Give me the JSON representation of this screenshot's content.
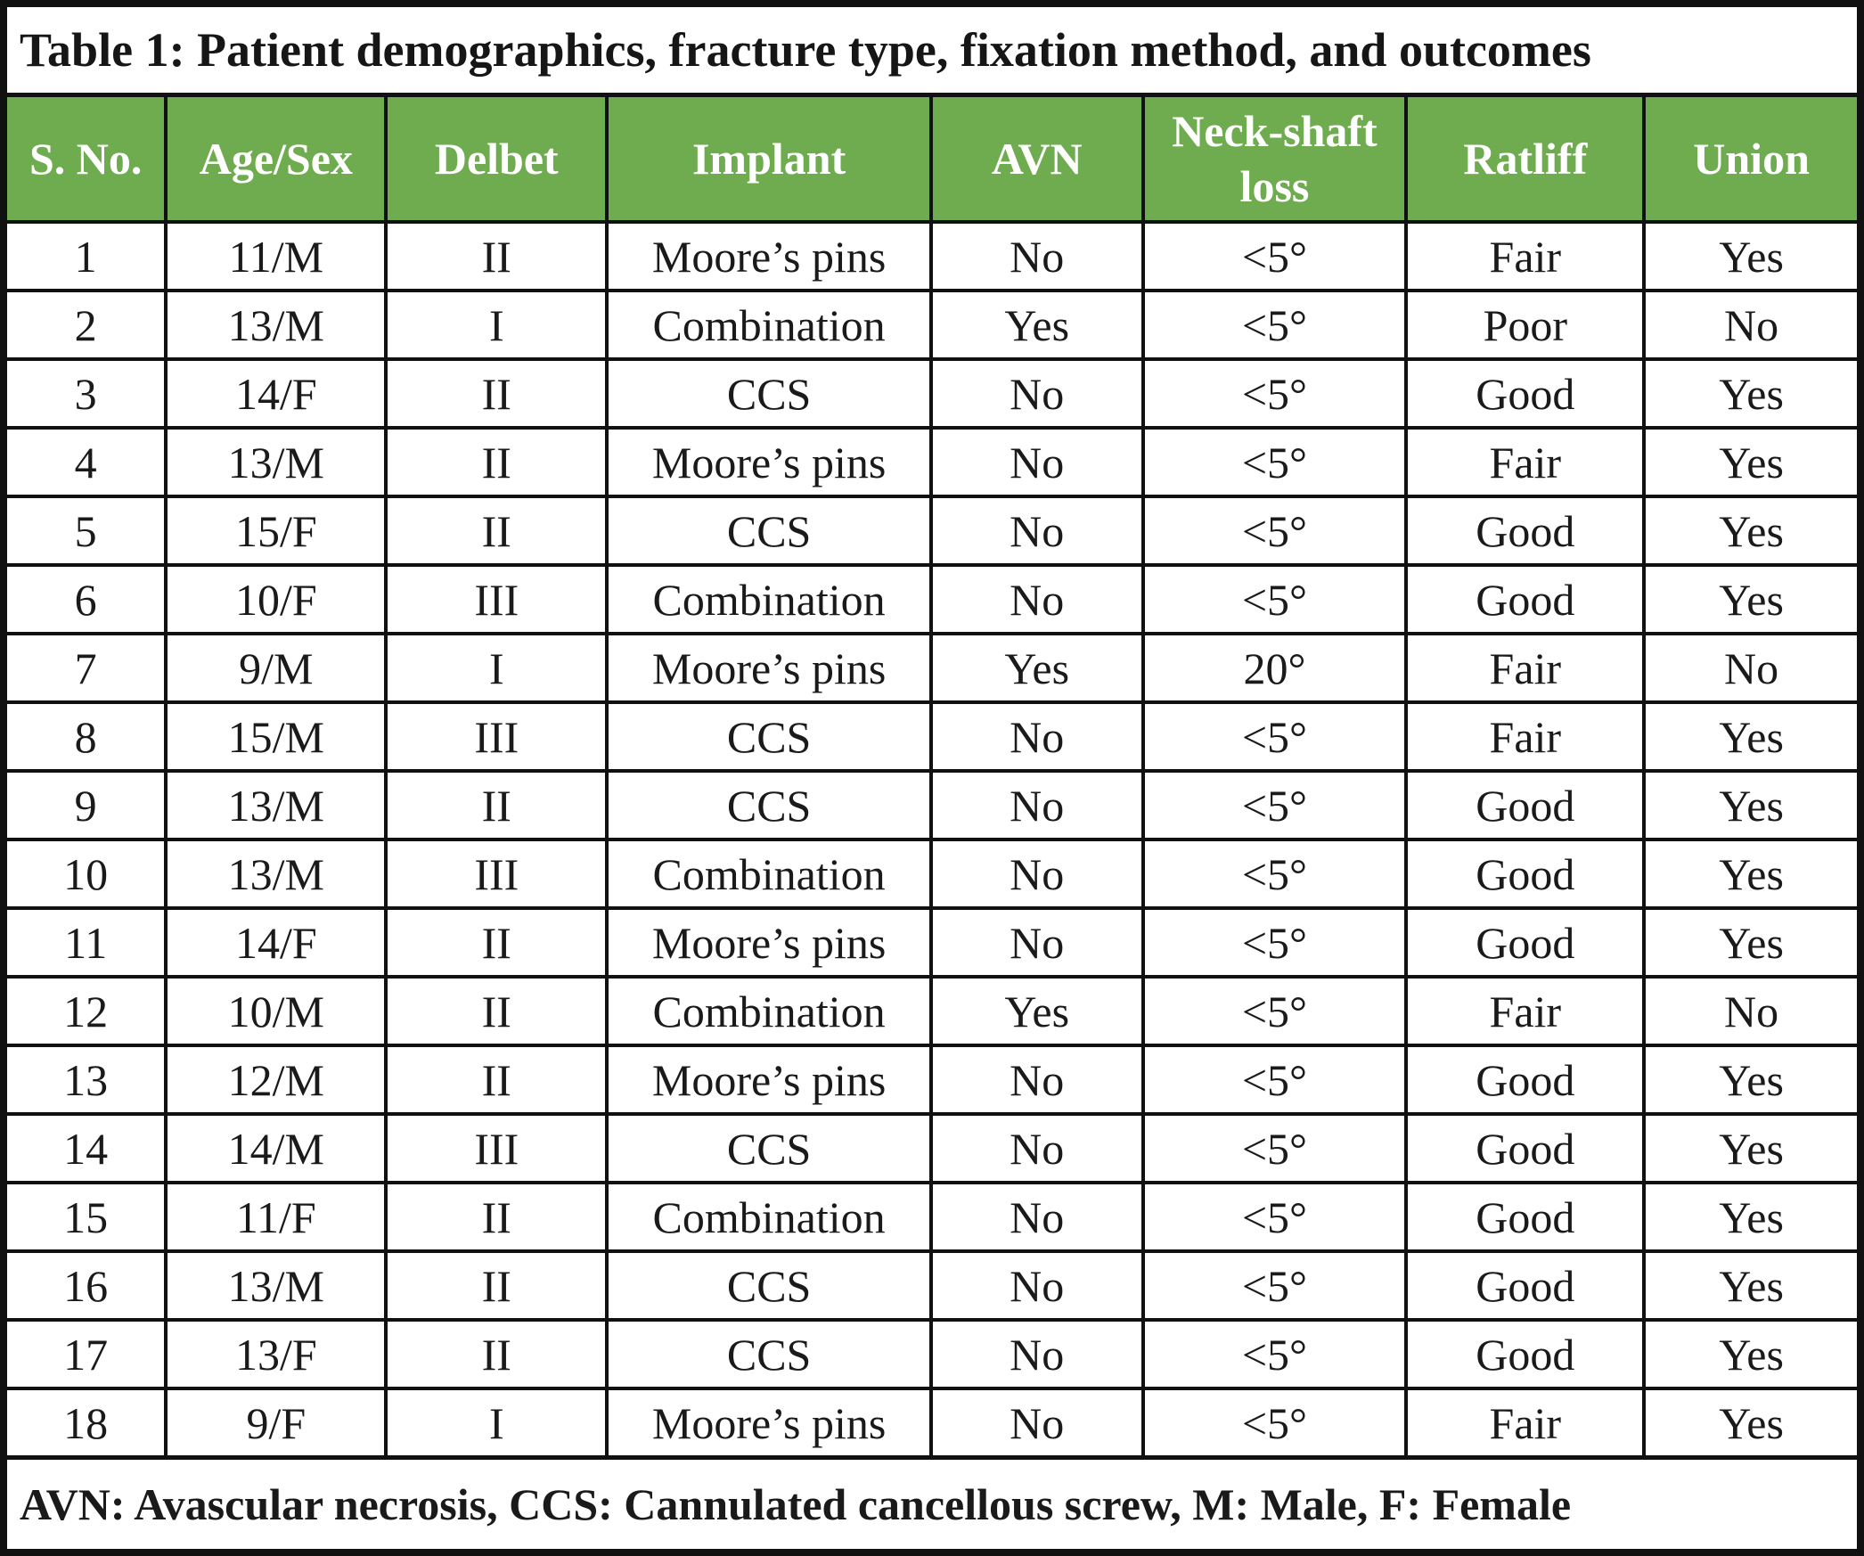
{
  "table": {
    "title": "Table 1: Patient demographics, fracture type, fixation method, and outcomes",
    "columns": [
      "S. No.",
      "Age/Sex",
      "Delbet",
      "Implant",
      "AVN",
      "Neck-shaft loss",
      "Ratliff",
      "Union"
    ],
    "rows": [
      [
        "1",
        "11/M",
        "II",
        "Moore’s pins",
        "No",
        "<5°",
        "Fair",
        "Yes"
      ],
      [
        "2",
        "13/M",
        "I",
        "Combination",
        "Yes",
        "<5°",
        "Poor",
        "No"
      ],
      [
        "3",
        "14/F",
        "II",
        "CCS",
        "No",
        "<5°",
        "Good",
        "Yes"
      ],
      [
        "4",
        "13/M",
        "II",
        "Moore’s pins",
        "No",
        "<5°",
        "Fair",
        "Yes"
      ],
      [
        "5",
        "15/F",
        "II",
        "CCS",
        "No",
        "<5°",
        "Good",
        "Yes"
      ],
      [
        "6",
        "10/F",
        "III",
        "Combination",
        "No",
        "<5°",
        "Good",
        "Yes"
      ],
      [
        "7",
        "9/M",
        "I",
        "Moore’s pins",
        "Yes",
        "20°",
        "Fair",
        "No"
      ],
      [
        "8",
        "15/M",
        "III",
        "CCS",
        "No",
        "<5°",
        "Fair",
        "Yes"
      ],
      [
        "9",
        "13/M",
        "II",
        "CCS",
        "No",
        "<5°",
        "Good",
        "Yes"
      ],
      [
        "10",
        "13/M",
        "III",
        "Combination",
        "No",
        "<5°",
        "Good",
        "Yes"
      ],
      [
        "11",
        "14/F",
        "II",
        "Moore’s pins",
        "No",
        "<5°",
        "Good",
        "Yes"
      ],
      [
        "12",
        "10/M",
        "II",
        "Combination",
        "Yes",
        "<5°",
        "Fair",
        "No"
      ],
      [
        "13",
        "12/M",
        "II",
        "Moore’s pins",
        "No",
        "<5°",
        "Good",
        "Yes"
      ],
      [
        "14",
        "14/M",
        "III",
        "CCS",
        "No",
        "<5°",
        "Good",
        "Yes"
      ],
      [
        "15",
        "11/F",
        "II",
        "Combination",
        "No",
        "<5°",
        "Good",
        "Yes"
      ],
      [
        "16",
        "13/M",
        "II",
        "CCS",
        "No",
        "<5°",
        "Good",
        "Yes"
      ],
      [
        "17",
        "13/F",
        "II",
        "CCS",
        "No",
        "<5°",
        "Good",
        "Yes"
      ],
      [
        "18",
        "9/F",
        "I",
        "Moore’s pins",
        "No",
        "<5°",
        "Fair",
        "Yes"
      ]
    ],
    "footnote": "AVN: Avascular necrosis, CCS: Cannulated cancellous screw, M: Male, F: Female",
    "column_widths_pct": [
      8.75,
      11.85,
      11.9,
      17.45,
      11.4,
      14.2,
      12.8,
      11.65
    ]
  },
  "colors": {
    "header_green": "#6FAC4F",
    "border_black": "#111111",
    "header_text": "#FFFFFF",
    "body_text": "#1A1A1A"
  }
}
